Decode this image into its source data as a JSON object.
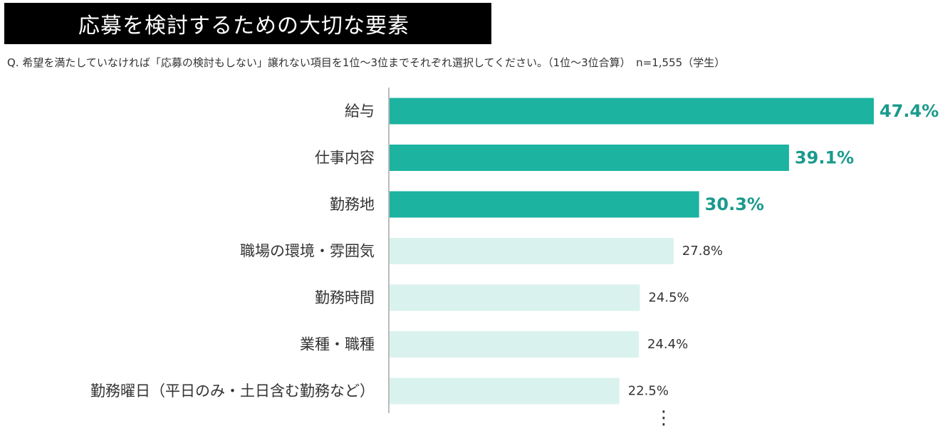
{
  "header": {
    "title": "応募を検討するための大切な要素",
    "question": "Q. 希望を満たしていなければ「応募の検討もしない」譲れない項目を1位〜3位までそれぞれ選択してください。（1位〜3位合算）　n=1,555（学生）"
  },
  "colors": {
    "highlight_bar": "#1cb3a0",
    "normal_bar": "#daf2ed",
    "highlight_text": "#1a9a8c",
    "axis": "#bbbbbb"
  },
  "more_indicator": "⋮",
  "chart_data": {
    "type": "bar",
    "orientation": "horizontal",
    "categories": [
      "給与",
      "仕事内容",
      "勤務地",
      "職場の環境・雰囲気",
      "勤務時間",
      "業種・職種",
      "勤務曜日（平日のみ・土日含む勤務など）"
    ],
    "values": [
      47.4,
      39.1,
      30.3,
      27.8,
      24.5,
      24.4,
      22.5
    ],
    "value_labels": [
      "47.4%",
      "39.1%",
      "30.3%",
      "27.8%",
      "24.5%",
      "24.4%",
      "22.5%"
    ],
    "highlighted": [
      true,
      true,
      true,
      false,
      false,
      false,
      false
    ],
    "unit": "%",
    "xlim": [
      0,
      50
    ],
    "grid": false,
    "legend": "none"
  }
}
